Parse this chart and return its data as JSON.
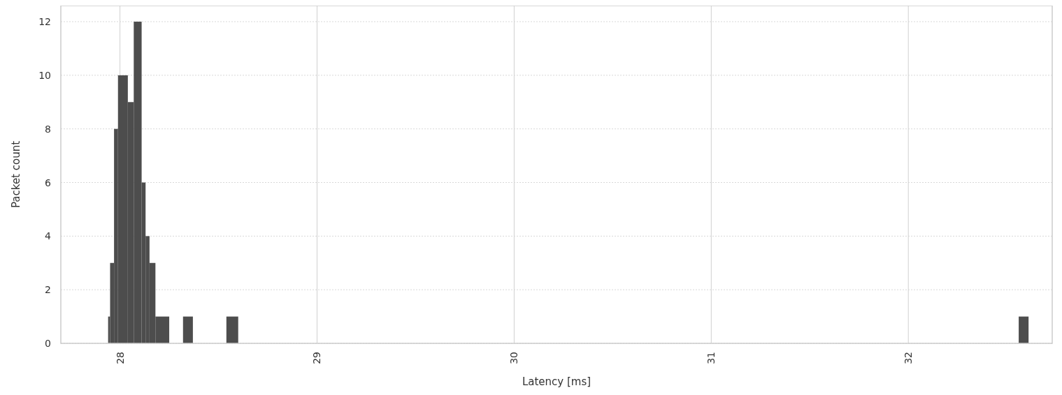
{
  "chart_data": {
    "type": "histogram",
    "xlabel": "Latency [ms]",
    "ylabel": "Packet count",
    "bins": [
      27.94,
      27.95,
      27.97,
      27.99,
      28.04,
      28.07,
      28.11,
      28.13,
      28.15,
      28.18,
      28.25,
      28.32,
      28.37,
      28.54,
      28.6,
      32.56,
      32.61
    ],
    "values": [
      1,
      3,
      8,
      10,
      9,
      12,
      6,
      4,
      3,
      1,
      0,
      1,
      0,
      1,
      0,
      1
    ],
    "color": "#4d4d4d",
    "xlim": [
      27.7,
      32.73
    ],
    "xticks": [
      28,
      29,
      30,
      31,
      32
    ],
    "ylim": [
      0,
      12.6
    ],
    "yticks": [
      0,
      2,
      4,
      6,
      8,
      10,
      12
    ],
    "grid": true
  }
}
